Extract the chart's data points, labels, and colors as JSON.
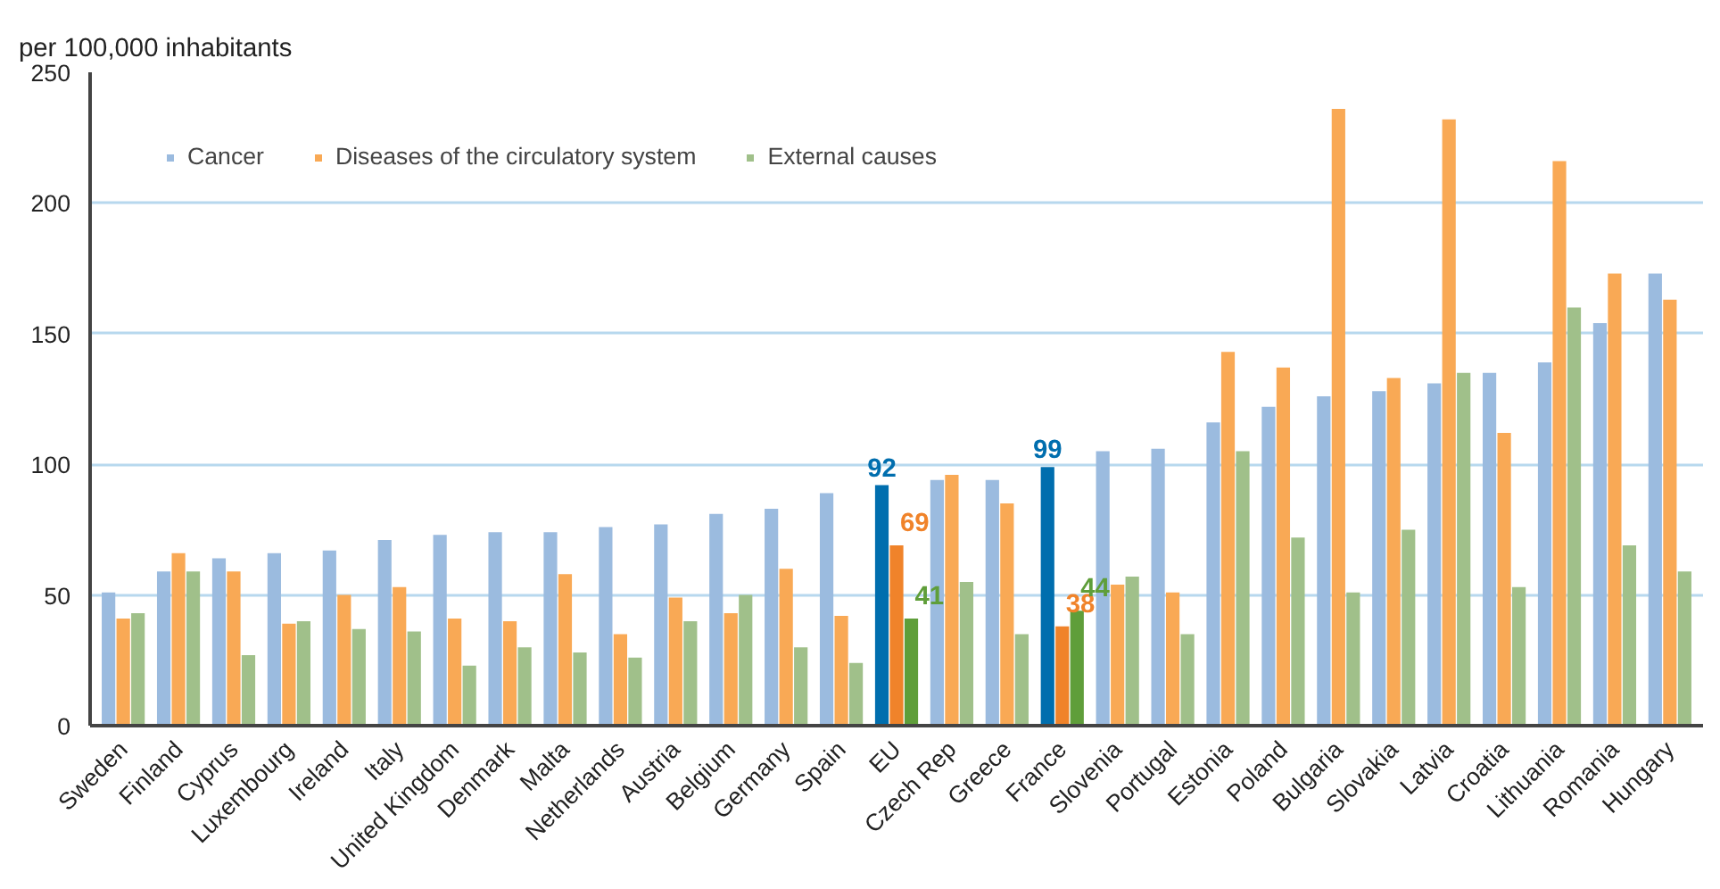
{
  "chart_data": {
    "type": "bar",
    "ylabel": "per 100,000 inhabitants",
    "categories": [
      "Sweden",
      "Finland",
      "Cyprus",
      "Luxembourg",
      "Ireland",
      "Italy",
      "United Kingdom",
      "Denmark",
      "Malta",
      "Netherlands",
      "Austria",
      "Belgium",
      "Germany",
      "Spain",
      "EU",
      "Czech Rep",
      "Greece",
      "France",
      "Slovenia",
      "Portugal",
      "Estonia",
      "Poland",
      "Bulgaria",
      "Slovakia",
      "Latvia",
      "Croatia",
      "Lithuania",
      "Romania",
      "Hungary"
    ],
    "series": [
      {
        "name": "Cancer",
        "color": "#9bbbdf",
        "colors": [
          "#9bbbdf",
          "#9bbbdf",
          "#9bbbdf",
          "#9bbbdf",
          "#9bbbdf",
          "#9bbbdf",
          "#9bbbdf",
          "#9bbbdf",
          "#9bbbdf",
          "#9bbbdf",
          "#9bbbdf",
          "#9bbbdf",
          "#9bbbdf",
          "#9bbbdf",
          "#006eae",
          "#9bbbdf",
          "#9bbbdf",
          "#006eae",
          "#9bbbdf",
          "#9bbbdf",
          "#9bbbdf",
          "#9bbbdf",
          "#9bbbdf",
          "#9bbbdf",
          "#9bbbdf",
          "#9bbbdf",
          "#9bbbdf",
          "#9bbbdf",
          "#9bbbdf"
        ],
        "values": [
          51,
          59,
          64,
          66,
          67,
          71,
          73,
          74,
          74,
          76,
          77,
          81,
          83,
          89,
          92,
          94,
          94,
          99,
          105,
          106,
          116,
          122,
          126,
          128,
          131,
          135,
          139,
          154,
          173
        ],
        "value_labels": [
          null,
          null,
          null,
          null,
          null,
          null,
          null,
          null,
          null,
          null,
          null,
          null,
          null,
          null,
          "92",
          null,
          null,
          "99",
          null,
          null,
          null,
          null,
          null,
          null,
          null,
          null,
          null,
          null,
          null
        ]
      },
      {
        "name": "Diseases of the circulatory system",
        "color": "#f9a955",
        "colors": [
          "#f9a955",
          "#f9a955",
          "#f9a955",
          "#f9a955",
          "#f9a955",
          "#f9a955",
          "#f9a955",
          "#f9a955",
          "#f9a955",
          "#f9a955",
          "#f9a955",
          "#f9a955",
          "#f9a955",
          "#f9a955",
          "#f0832a",
          "#f9a955",
          "#f9a955",
          "#f0832a",
          "#f9a955",
          "#f9a955",
          "#f9a955",
          "#f9a955",
          "#f9a955",
          "#f9a955",
          "#f9a955",
          "#f9a955",
          "#f9a955",
          "#f9a955",
          "#f9a955"
        ],
        "values": [
          41,
          66,
          59,
          39,
          50,
          53,
          41,
          40,
          58,
          35,
          49,
          43,
          60,
          42,
          69,
          96,
          85,
          38,
          54,
          51,
          143,
          137,
          236,
          133,
          232,
          112,
          216,
          173,
          163
        ],
        "value_labels": [
          null,
          null,
          null,
          null,
          null,
          null,
          null,
          null,
          null,
          null,
          null,
          null,
          null,
          null,
          "69",
          null,
          null,
          "38",
          null,
          null,
          null,
          null,
          null,
          null,
          null,
          null,
          null,
          null,
          null
        ]
      },
      {
        "name": "External causes",
        "color": "#a0c08a",
        "colors": [
          "#a0c08a",
          "#a0c08a",
          "#a0c08a",
          "#a0c08a",
          "#a0c08a",
          "#a0c08a",
          "#a0c08a",
          "#a0c08a",
          "#a0c08a",
          "#a0c08a",
          "#a0c08a",
          "#a0c08a",
          "#a0c08a",
          "#a0c08a",
          "#5f9e3a",
          "#a0c08a",
          "#a0c08a",
          "#5f9e3a",
          "#a0c08a",
          "#a0c08a",
          "#a0c08a",
          "#a0c08a",
          "#a0c08a",
          "#a0c08a",
          "#a0c08a",
          "#a0c08a",
          "#a0c08a",
          "#a0c08a",
          "#a0c08a"
        ],
        "values": [
          43,
          59,
          27,
          40,
          37,
          36,
          23,
          30,
          28,
          26,
          40,
          50,
          30,
          24,
          41,
          55,
          35,
          44,
          57,
          35,
          105,
          72,
          51,
          75,
          135,
          53,
          160,
          69,
          59
        ],
        "value_labels": [
          null,
          null,
          null,
          null,
          null,
          null,
          null,
          null,
          null,
          null,
          null,
          null,
          null,
          null,
          "41",
          null,
          null,
          "44",
          null,
          null,
          null,
          null,
          null,
          null,
          null,
          null,
          null,
          null,
          null
        ]
      }
    ],
    "ylim": [
      0,
      250
    ],
    "yticks": [
      0,
      50,
      100,
      150,
      200,
      250
    ],
    "grid": "y",
    "legend": "top left"
  }
}
